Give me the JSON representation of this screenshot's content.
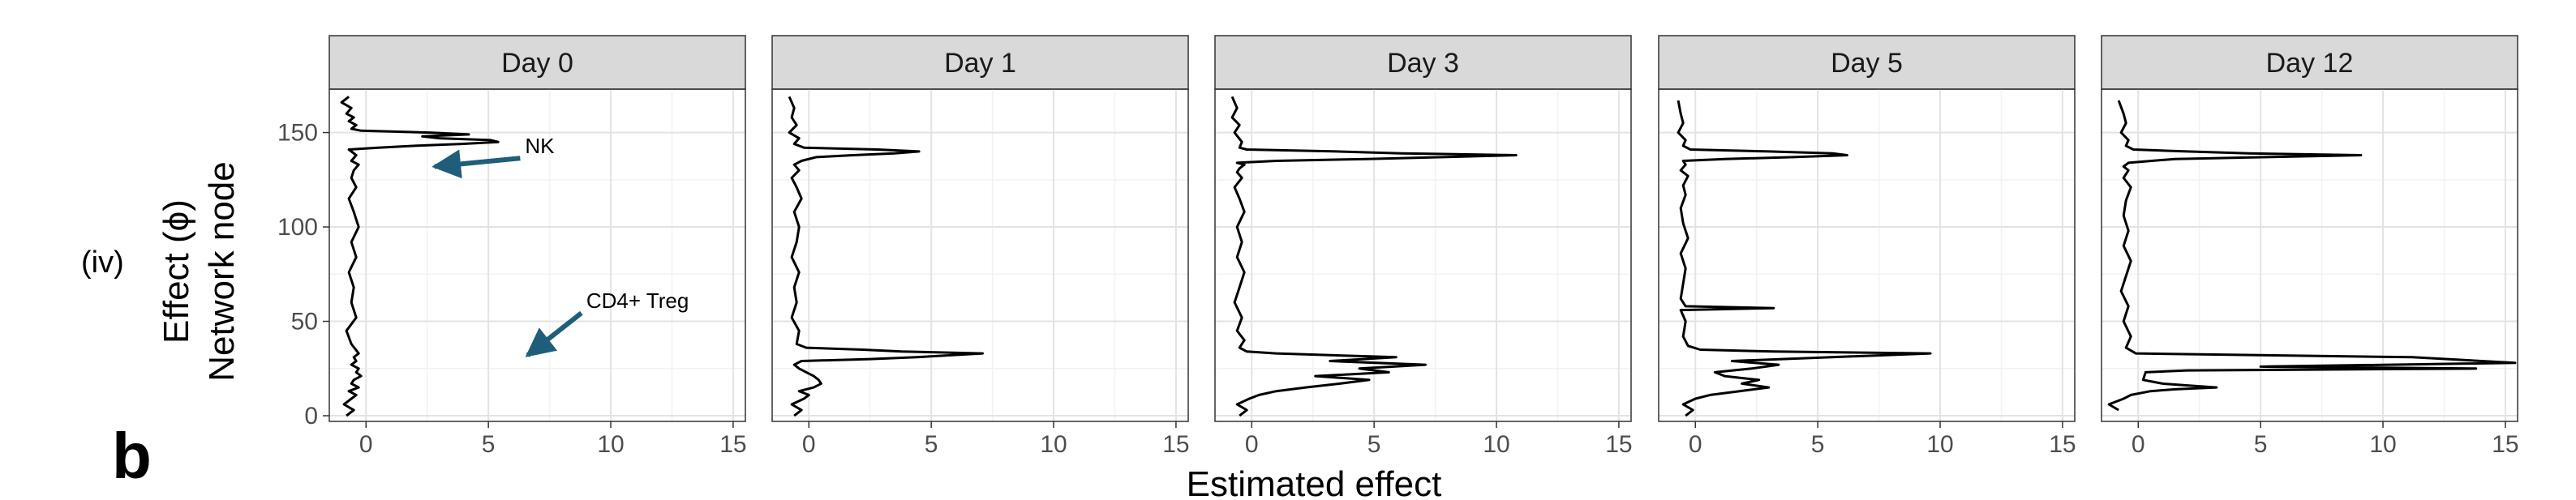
{
  "panel_tag": "(iv)",
  "figure_tag": "b",
  "chart_data": {
    "type": "line",
    "facets": [
      "Day 0",
      "Day 1",
      "Day 3",
      "Day 5",
      "Day 12"
    ],
    "xlabel": "Estimated effect",
    "ylabel_line1": "Effect (ϕ)",
    "ylabel_line2": "Network node",
    "xlim": [
      -1.5,
      15.5
    ],
    "ylim": [
      -3,
      173
    ],
    "xticks": [
      "0",
      "5",
      "10",
      "15"
    ],
    "yticks": [
      "0",
      "50",
      "100",
      "150"
    ],
    "annotations": [
      {
        "facet": "Day 0",
        "text": "NK",
        "x": 6.5,
        "y": 139,
        "arrow_to": [
          2.8,
          132
        ]
      },
      {
        "facet": "Day 0",
        "text": "CD4+ Treg",
        "x": 9,
        "y": 57,
        "arrow_to": [
          6.6,
          32
        ]
      }
    ],
    "series": [
      {
        "facet": "Day 0",
        "x": [
          -0.8,
          -0.5,
          -0.9,
          -0.6,
          -0.4,
          -0.7,
          -0.3,
          -0.6,
          -0.5,
          -0.2,
          -0.4,
          -0.3,
          -0.6,
          -0.4,
          -0.5,
          -0.3,
          -0.6,
          -0.8,
          -0.4,
          -0.6,
          -0.5,
          -0.7,
          -0.4,
          -0.6,
          -0.3,
          -0.5,
          -0.7,
          -0.4,
          -0.6,
          -0.5,
          -0.3,
          -0.6,
          -0.4,
          -0.7,
          0.5,
          2.0,
          3.9,
          5.4,
          5.1,
          3.0,
          2.3,
          4.2,
          2.6,
          -0.2,
          -0.6,
          -0.4,
          -0.7,
          -0.5,
          -0.8,
          -0.6,
          -1.0,
          -0.7
        ],
        "y": [
          0,
          3,
          6,
          9,
          11,
          13,
          15,
          17,
          19,
          21,
          23,
          25,
          27,
          29,
          31,
          33,
          38,
          45,
          52,
          60,
          68,
          76,
          84,
          92,
          100,
          108,
          115,
          121,
          126,
          130,
          133,
          135,
          138,
          141,
          142,
          143,
          144,
          145,
          146,
          147,
          148,
          149,
          150,
          151,
          152,
          154,
          156,
          158,
          160,
          163,
          166,
          169
        ]
      },
      {
        "facet": "Day 1",
        "x": [
          -0.6,
          -0.3,
          -0.7,
          -0.2,
          0.0,
          -0.4,
          0.2,
          0.5,
          0.4,
          0.2,
          -0.1,
          -0.4,
          -0.6,
          -0.3,
          2.5,
          4.4,
          7.1,
          3.8,
          2.2,
          -0.1,
          -0.5,
          -0.4,
          -0.7,
          -0.5,
          -0.6,
          -0.4,
          -0.7,
          -0.5,
          -0.4,
          -0.6,
          -0.3,
          -0.5,
          -0.7,
          -0.4,
          -0.6,
          -0.3,
          0.3,
          1.8,
          3.5,
          4.5,
          2.8,
          -0.2,
          -0.6,
          -0.4,
          -0.8,
          -0.5,
          -0.7,
          -0.6,
          -0.8
        ],
        "y": [
          0,
          3,
          6,
          9,
          11,
          13,
          15,
          17,
          19,
          21,
          23,
          25,
          27,
          29,
          30,
          31,
          33,
          34,
          35,
          36,
          38,
          45,
          52,
          60,
          68,
          76,
          84,
          92,
          100,
          108,
          115,
          121,
          126,
          130,
          133,
          135,
          137,
          138,
          139,
          140,
          141,
          142,
          144,
          147,
          150,
          154,
          158,
          163,
          169
        ]
      },
      {
        "facet": "Day 3",
        "x": [
          -0.5,
          -0.2,
          -0.6,
          -0.1,
          0.3,
          1.0,
          2.2,
          3.6,
          4.8,
          2.6,
          5.6,
          4.4,
          7.1,
          3.2,
          5.9,
          1.0,
          -0.2,
          -0.5,
          -0.3,
          -0.6,
          -0.4,
          -0.7,
          -0.5,
          -0.3,
          -0.6,
          -0.4,
          -0.6,
          -0.3,
          -0.5,
          -0.7,
          -0.4,
          -0.6,
          -0.5,
          -0.3,
          -0.6,
          1.0,
          4.7,
          7.8,
          10.8,
          6.1,
          3.5,
          -0.2,
          -0.5,
          -0.4,
          -0.7,
          -0.5,
          -0.8,
          -0.6,
          -0.8
        ],
        "y": [
          0,
          3,
          6,
          9,
          11,
          13,
          15,
          17,
          19,
          21,
          23,
          25,
          27,
          29,
          31,
          33,
          34,
          36,
          40,
          45,
          52,
          60,
          68,
          76,
          84,
          92,
          100,
          108,
          115,
          121,
          126,
          129,
          131,
          133,
          134,
          135,
          136,
          137,
          138,
          139,
          140,
          141,
          142,
          145,
          150,
          154,
          158,
          163,
          169
        ]
      },
      {
        "facet": "Day 5",
        "x": [
          -0.4,
          -0.1,
          -0.5,
          0.0,
          0.6,
          1.8,
          3.0,
          1.9,
          2.6,
          1.2,
          0.8,
          2.3,
          3.4,
          1.5,
          9.6,
          3.2,
          0.2,
          -0.3,
          -0.5,
          -0.4,
          -0.6,
          3.2,
          -0.4,
          -0.6,
          -0.5,
          -0.4,
          -0.6,
          -0.3,
          -0.5,
          -0.6,
          -0.4,
          -0.5,
          -0.3,
          -0.6,
          -0.4,
          -0.5,
          1.2,
          4.0,
          6.2,
          5.6,
          3.0,
          -0.2,
          -0.5,
          -0.4,
          -0.7,
          -0.5,
          -0.6,
          -0.7
        ],
        "y": [
          0,
          3,
          6,
          9,
          11,
          13,
          15,
          17,
          19,
          21,
          23,
          25,
          27,
          29,
          33,
          34,
          35,
          37,
          42,
          50,
          56,
          57,
          58,
          62,
          70,
          78,
          86,
          94,
          102,
          110,
          117,
          122,
          127,
          130,
          133,
          135,
          136,
          137,
          138,
          139,
          140,
          141,
          143,
          146,
          150,
          155,
          160,
          167
        ]
      },
      {
        "facet": "Day 12",
        "x": [
          -0.8,
          -1.2,
          -0.6,
          -0.3,
          0.5,
          1.5,
          3.2,
          1.0,
          0.2,
          0.3,
          2.0,
          13.8,
          5.0,
          15.4,
          11.2,
          -0.1,
          -0.5,
          -0.3,
          -0.6,
          -0.4,
          -0.7,
          -0.5,
          -0.3,
          -0.6,
          -0.4,
          -0.6,
          -0.5,
          -0.3,
          -0.6,
          -0.4,
          -0.6,
          -0.4,
          1.5,
          5.2,
          9.1,
          4.5,
          2.0,
          -0.2,
          -0.5,
          -0.4,
          -0.7,
          -0.5,
          -0.6,
          -0.8
        ],
        "y": [
          3,
          6,
          9,
          11,
          13,
          14,
          15,
          17,
          19,
          23,
          24,
          25,
          26,
          28,
          31,
          33,
          36,
          42,
          50,
          58,
          66,
          74,
          82,
          90,
          98,
          106,
          114,
          121,
          126,
          130,
          132,
          134,
          136,
          137,
          138,
          139,
          140,
          141,
          143,
          146,
          150,
          155,
          160,
          167
        ]
      }
    ]
  }
}
